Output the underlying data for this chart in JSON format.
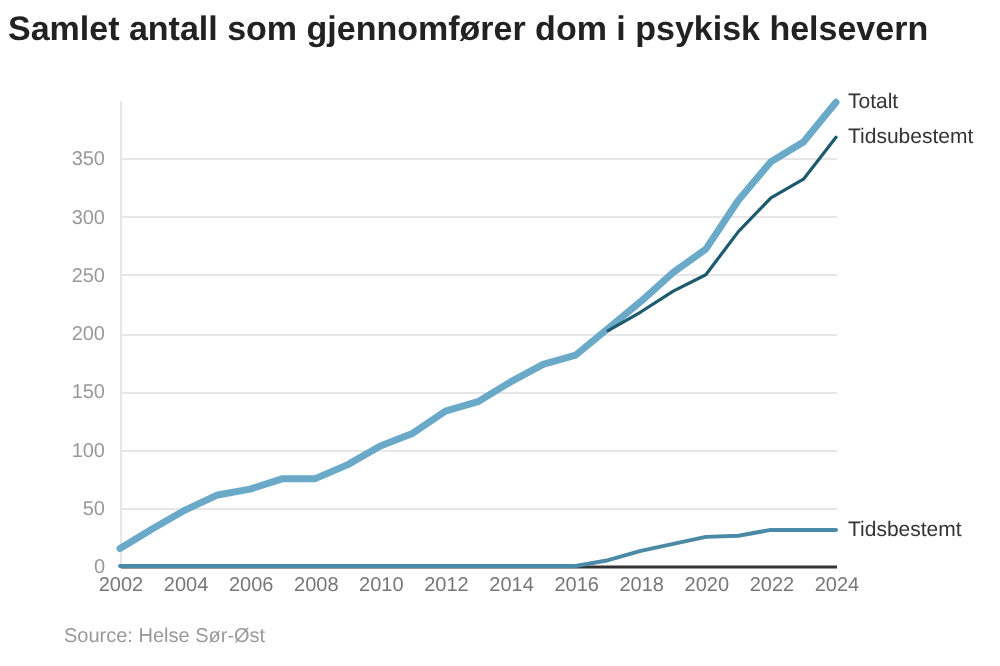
{
  "chart_data": {
    "type": "line",
    "title": "Samlet antall som gjennomfører dom i psykisk helsevern",
    "x": [
      2002,
      2003,
      2004,
      2005,
      2006,
      2007,
      2008,
      2009,
      2010,
      2011,
      2012,
      2013,
      2014,
      2015,
      2016,
      2017,
      2018,
      2019,
      2020,
      2021,
      2022,
      2023,
      2024
    ],
    "series": [
      {
        "name": "Totalt",
        "color": "#6aaac8",
        "values": [
          15,
          32,
          48,
          61,
          66,
          75,
          75,
          87,
          103,
          114,
          133,
          141,
          158,
          173,
          181,
          204,
          227,
          252,
          272,
          314,
          347,
          364,
          398
        ]
      },
      {
        "name": "Tidsubestemt",
        "color": "#1d5a6e",
        "values": [
          null,
          null,
          null,
          null,
          null,
          null,
          null,
          null,
          null,
          null,
          null,
          null,
          null,
          null,
          null,
          202,
          218,
          236,
          250,
          287,
          316,
          332,
          368
        ]
      },
      {
        "name": "Tidsbestemt",
        "color": "#4a8aa6",
        "values": [
          0,
          0,
          0,
          0,
          0,
          0,
          0,
          0,
          0,
          0,
          0,
          0,
          0,
          0,
          0,
          5,
          13,
          19,
          25,
          26,
          31,
          31,
          31
        ]
      }
    ],
    "xlim": [
      2002,
      2024
    ],
    "xticks": [
      2002,
      2004,
      2006,
      2008,
      2010,
      2012,
      2014,
      2016,
      2018,
      2020,
      2022,
      2024
    ],
    "ylim": [
      0,
      400
    ],
    "yticks": [
      0,
      50,
      100,
      150,
      200,
      250,
      300,
      350
    ],
    "grid": "y",
    "legend": false,
    "annotations": [
      "Source: Helse Sør-Øst"
    ]
  }
}
